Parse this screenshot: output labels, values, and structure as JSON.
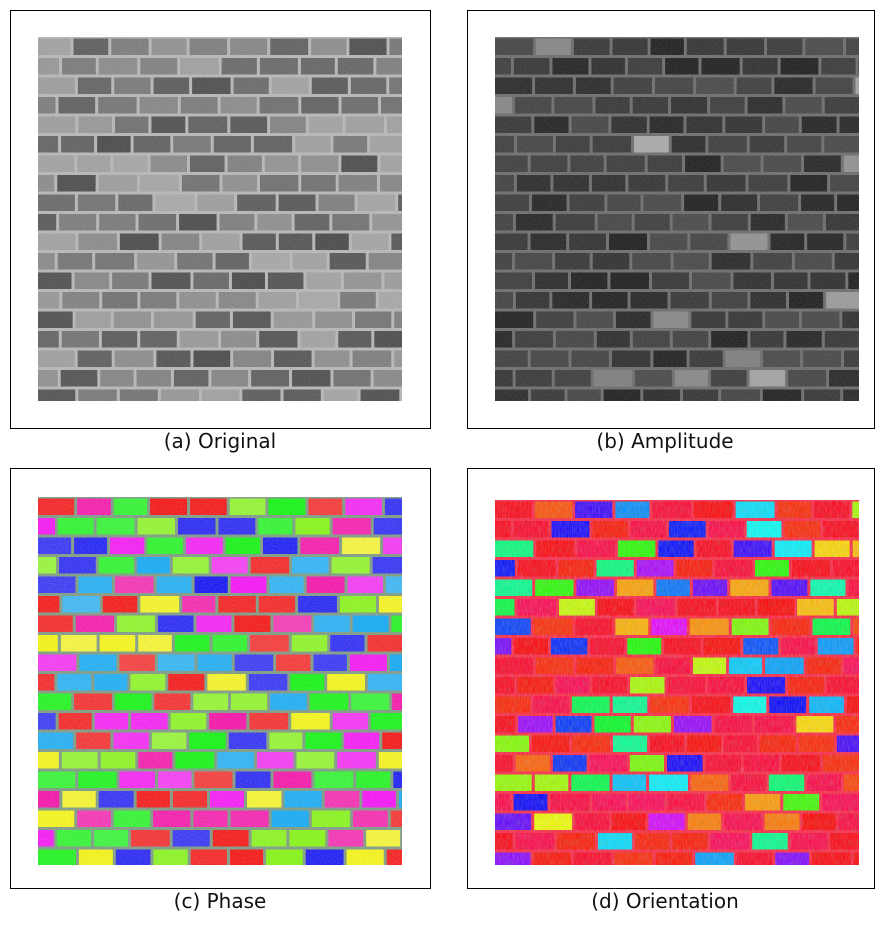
{
  "panels": [
    {
      "caption": "(a) Original"
    },
    {
      "caption": "(b) Amplitude"
    },
    {
      "caption": "(c) Phase"
    },
    {
      "caption": "(d) Orientation"
    }
  ]
}
